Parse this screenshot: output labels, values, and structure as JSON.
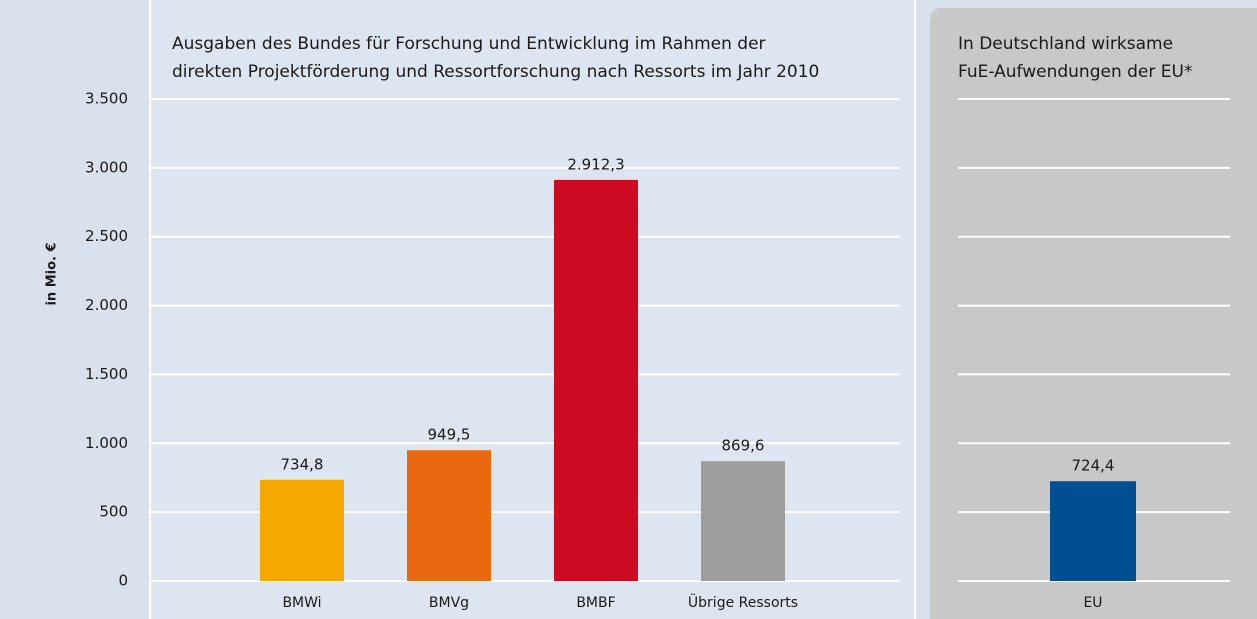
{
  "chart_data": [
    {
      "type": "bar",
      "title": [
        "Ausgaben des Bundes für Forschung und Entwicklung im Rahmen der",
        "direkten Projektförderung und Ressortforschung nach Ressorts im Jahr 2010"
      ],
      "ylabel": "in Mio. €",
      "categories": [
        "BMWi",
        "BMVg",
        "BMBF",
        "Übrige Ressorts"
      ],
      "values": [
        734.8,
        949.5,
        2912.3,
        869.6
      ],
      "value_labels": [
        "734,8",
        "949,5",
        "2.912,3",
        "869,6"
      ],
      "colors": [
        "#f5a800",
        "#e8690f",
        "#cc0a21",
        "#9d9d9d"
      ],
      "ylim": [
        0,
        3500
      ],
      "yticks": [
        0,
        500,
        {
          "value": 1000,
          "label": "1.000"
        },
        {
          "value": 1500,
          "label": "1.500"
        },
        {
          "value": 2000,
          "label": "2.000"
        },
        {
          "value": 2500,
          "label": "2.500"
        },
        {
          "value": 3000,
          "label": "3.000"
        },
        {
          "value": 3500,
          "label": "3.500"
        }
      ],
      "grid": true
    },
    {
      "type": "bar",
      "title": [
        "In Deutschland wirksame",
        "FuE-Aufwendungen der EU*"
      ],
      "categories": [
        "EU"
      ],
      "values": [
        724.4
      ],
      "value_labels": [
        "724,4"
      ],
      "colors": [
        "#004f93"
      ],
      "ylim": [
        0,
        3500
      ],
      "yticks": [
        0,
        500,
        1000,
        1500,
        2000,
        2500,
        3000,
        3500
      ],
      "grid": true
    }
  ]
}
